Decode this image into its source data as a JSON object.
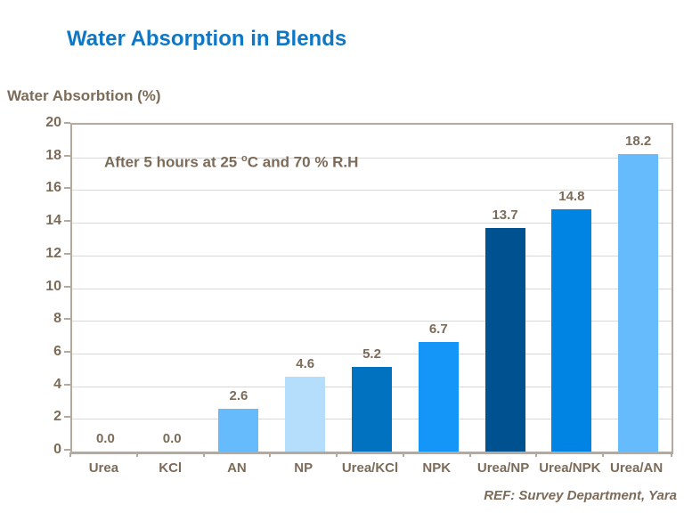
{
  "header": {
    "title": "Water Absorption in Blends",
    "title_color": "#0E77C6"
  },
  "chart_data": {
    "type": "bar",
    "title": "Water Absorption in Blends",
    "ylabel": "Water Absorbtion (%)",
    "xlabel": "",
    "categories": [
      "Urea",
      "KCl",
      "AN",
      "NP",
      "Urea/KCl",
      "NPK",
      "Urea/NP",
      "Urea/NPK",
      "Urea/AN"
    ],
    "values": [
      0.0,
      0.0,
      2.6,
      4.6,
      5.2,
      6.7,
      13.7,
      14.8,
      18.2
    ],
    "value_labels": [
      "0.0",
      "0.0",
      "2.6",
      "4.6",
      "5.2",
      "6.7",
      "13.7",
      "14.8",
      "18.2"
    ],
    "bar_colors": [
      "#66BBFC",
      "#66BBFC",
      "#66BBFC",
      "#B5DEFC",
      "#0072C0",
      "#1496F8",
      "#00518F",
      "#0084E4",
      "#66BBFC"
    ],
    "ylim": [
      0,
      20
    ],
    "yticks": [
      0,
      2,
      4,
      6,
      8,
      10,
      12,
      14,
      16,
      18,
      20
    ],
    "grid": true,
    "legend": "none",
    "annotation": "After 5 hours at 25 ᵒC and 70 % R.H",
    "annotation_prefix": "After 5 hours at 25 ",
    "annotation_sup": "o",
    "annotation_suffix": "C and 70 % R.H",
    "footnote": "REF: Survey Department, Yara"
  },
  "colors": {
    "axis_text": "#7C6B58",
    "axis_line": "#B3A99C",
    "gridline": "#D9D9D9",
    "background": "#FFFFFF"
  }
}
